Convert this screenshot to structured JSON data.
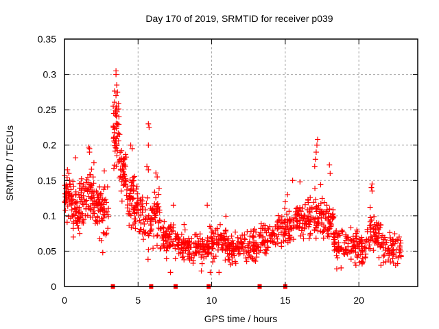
{
  "chart_data": {
    "type": "scatter",
    "title": "Day 170 of 2019, SRMTID for receiver p039",
    "xlabel": "GPS time / hours",
    "ylabel": "SRMTID / TECUs",
    "xlim": [
      0,
      24
    ],
    "ylim": [
      0,
      0.35
    ],
    "xticks": [
      0,
      5,
      10,
      15,
      20
    ],
    "xtick_labels": [
      "0",
      "5",
      "10",
      "15",
      "20"
    ],
    "yticks": [
      0,
      0.05,
      0.1,
      0.15,
      0.2,
      0.25,
      0.3,
      0.35
    ],
    "ytick_labels": [
      "0",
      "0.05",
      "0.1",
      "0.15",
      "0.2",
      "0.25",
      "0.3",
      "0.35"
    ],
    "grid": true,
    "marker": "plus",
    "series_color": "#ff0000",
    "envelope_bins": [
      {
        "t0": 0.0,
        "t1": 0.5,
        "mean": 0.125,
        "spread": 0.025,
        "n": 45
      },
      {
        "t0": 0.5,
        "t1": 1.0,
        "mean": 0.11,
        "spread": 0.03,
        "n": 40
      },
      {
        "t0": 1.0,
        "t1": 1.5,
        "mean": 0.115,
        "spread": 0.03,
        "n": 40
      },
      {
        "t0": 1.5,
        "t1": 2.0,
        "mean": 0.13,
        "spread": 0.03,
        "n": 40
      },
      {
        "t0": 2.0,
        "t1": 2.5,
        "mean": 0.115,
        "spread": 0.03,
        "n": 40
      },
      {
        "t0": 2.5,
        "t1": 3.0,
        "mean": 0.11,
        "spread": 0.03,
        "n": 35
      },
      {
        "t0": 3.3,
        "t1": 3.7,
        "mean": 0.22,
        "spread": 0.05,
        "n": 45
      },
      {
        "t0": 3.7,
        "t1": 4.2,
        "mean": 0.16,
        "spread": 0.035,
        "n": 40
      },
      {
        "t0": 4.2,
        "t1": 4.7,
        "mean": 0.12,
        "spread": 0.03,
        "n": 40
      },
      {
        "t0": 4.7,
        "t1": 5.3,
        "mean": 0.11,
        "spread": 0.03,
        "n": 40
      },
      {
        "t0": 5.3,
        "t1": 5.9,
        "mean": 0.09,
        "spread": 0.03,
        "n": 35
      },
      {
        "t0": 5.9,
        "t1": 6.5,
        "mean": 0.1,
        "spread": 0.04,
        "n": 40
      },
      {
        "t0": 6.5,
        "t1": 7.5,
        "mean": 0.07,
        "spread": 0.02,
        "n": 55
      },
      {
        "t0": 7.5,
        "t1": 8.5,
        "mean": 0.06,
        "spread": 0.018,
        "n": 60
      },
      {
        "t0": 8.5,
        "t1": 9.8,
        "mean": 0.055,
        "spread": 0.018,
        "n": 70
      },
      {
        "t0": 9.8,
        "t1": 11.0,
        "mean": 0.065,
        "spread": 0.02,
        "n": 70
      },
      {
        "t0": 11.0,
        "t1": 12.5,
        "mean": 0.055,
        "spread": 0.018,
        "n": 80
      },
      {
        "t0": 12.5,
        "t1": 13.3,
        "mean": 0.06,
        "spread": 0.018,
        "n": 45
      },
      {
        "t0": 13.3,
        "t1": 14.5,
        "mean": 0.07,
        "spread": 0.02,
        "n": 60
      },
      {
        "t0": 14.5,
        "t1": 15.5,
        "mean": 0.085,
        "spread": 0.022,
        "n": 55
      },
      {
        "t0": 15.5,
        "t1": 16.5,
        "mean": 0.09,
        "spread": 0.022,
        "n": 60
      },
      {
        "t0": 16.5,
        "t1": 17.5,
        "mean": 0.1,
        "spread": 0.025,
        "n": 60
      },
      {
        "t0": 17.5,
        "t1": 18.3,
        "mean": 0.09,
        "spread": 0.025,
        "n": 50
      },
      {
        "t0": 18.3,
        "t1": 19.5,
        "mean": 0.06,
        "spread": 0.018,
        "n": 65
      },
      {
        "t0": 19.5,
        "t1": 20.5,
        "mean": 0.055,
        "spread": 0.018,
        "n": 60
      },
      {
        "t0": 20.5,
        "t1": 21.5,
        "mean": 0.075,
        "spread": 0.022,
        "n": 60
      },
      {
        "t0": 21.5,
        "t1": 22.9,
        "mean": 0.055,
        "spread": 0.018,
        "n": 65
      }
    ],
    "notable_points": [
      [
        3.5,
        0.305
      ],
      [
        3.5,
        0.3
      ],
      [
        3.55,
        0.285
      ],
      [
        3.6,
        0.275
      ],
      [
        3.5,
        0.27
      ],
      [
        3.55,
        0.255
      ],
      [
        3.45,
        0.245
      ],
      [
        3.7,
        0.24
      ],
      [
        3.6,
        0.23
      ],
      [
        3.75,
        0.215
      ],
      [
        5.7,
        0.23
      ],
      [
        5.75,
        0.225
      ],
      [
        5.7,
        0.2
      ],
      [
        5.6,
        0.17
      ],
      [
        5.7,
        0.165
      ],
      [
        1.65,
        0.197
      ],
      [
        1.7,
        0.195
      ],
      [
        1.7,
        0.19
      ],
      [
        0.75,
        0.182
      ],
      [
        2.0,
        0.175
      ],
      [
        4.5,
        0.2
      ],
      [
        4.6,
        0.195
      ],
      [
        6.3,
        0.155
      ],
      [
        7.4,
        0.115
      ],
      [
        9.7,
        0.115
      ],
      [
        15.15,
        0.13
      ],
      [
        15.0,
        0.12
      ],
      [
        17.2,
        0.208
      ],
      [
        17.15,
        0.2
      ],
      [
        17.1,
        0.19
      ],
      [
        17.05,
        0.18
      ],
      [
        17.0,
        0.17
      ],
      [
        18.0,
        0.172
      ],
      [
        18.05,
        0.16
      ],
      [
        20.9,
        0.145
      ],
      [
        20.85,
        0.14
      ],
      [
        20.9,
        0.135
      ],
      [
        15.5,
        0.15
      ],
      [
        16.0,
        0.148
      ],
      [
        0.2,
        0.165
      ],
      [
        0.3,
        0.16
      ],
      [
        2.6,
        0.048
      ],
      [
        2.5,
        0.065
      ],
      [
        0.6,
        0.07
      ],
      [
        9.3,
        0.022
      ],
      [
        9.9,
        0.02
      ],
      [
        19.8,
        0.03
      ],
      [
        21.5,
        0.03
      ],
      [
        22.5,
        0.03
      ],
      [
        18.5,
        0.025
      ],
      [
        7.2,
        0.02
      ],
      [
        10.5,
        0.02
      ]
    ],
    "satellite_markers_hours": [
      3.29,
      5.89,
      7.55,
      9.8,
      13.26,
      15.0
    ]
  }
}
